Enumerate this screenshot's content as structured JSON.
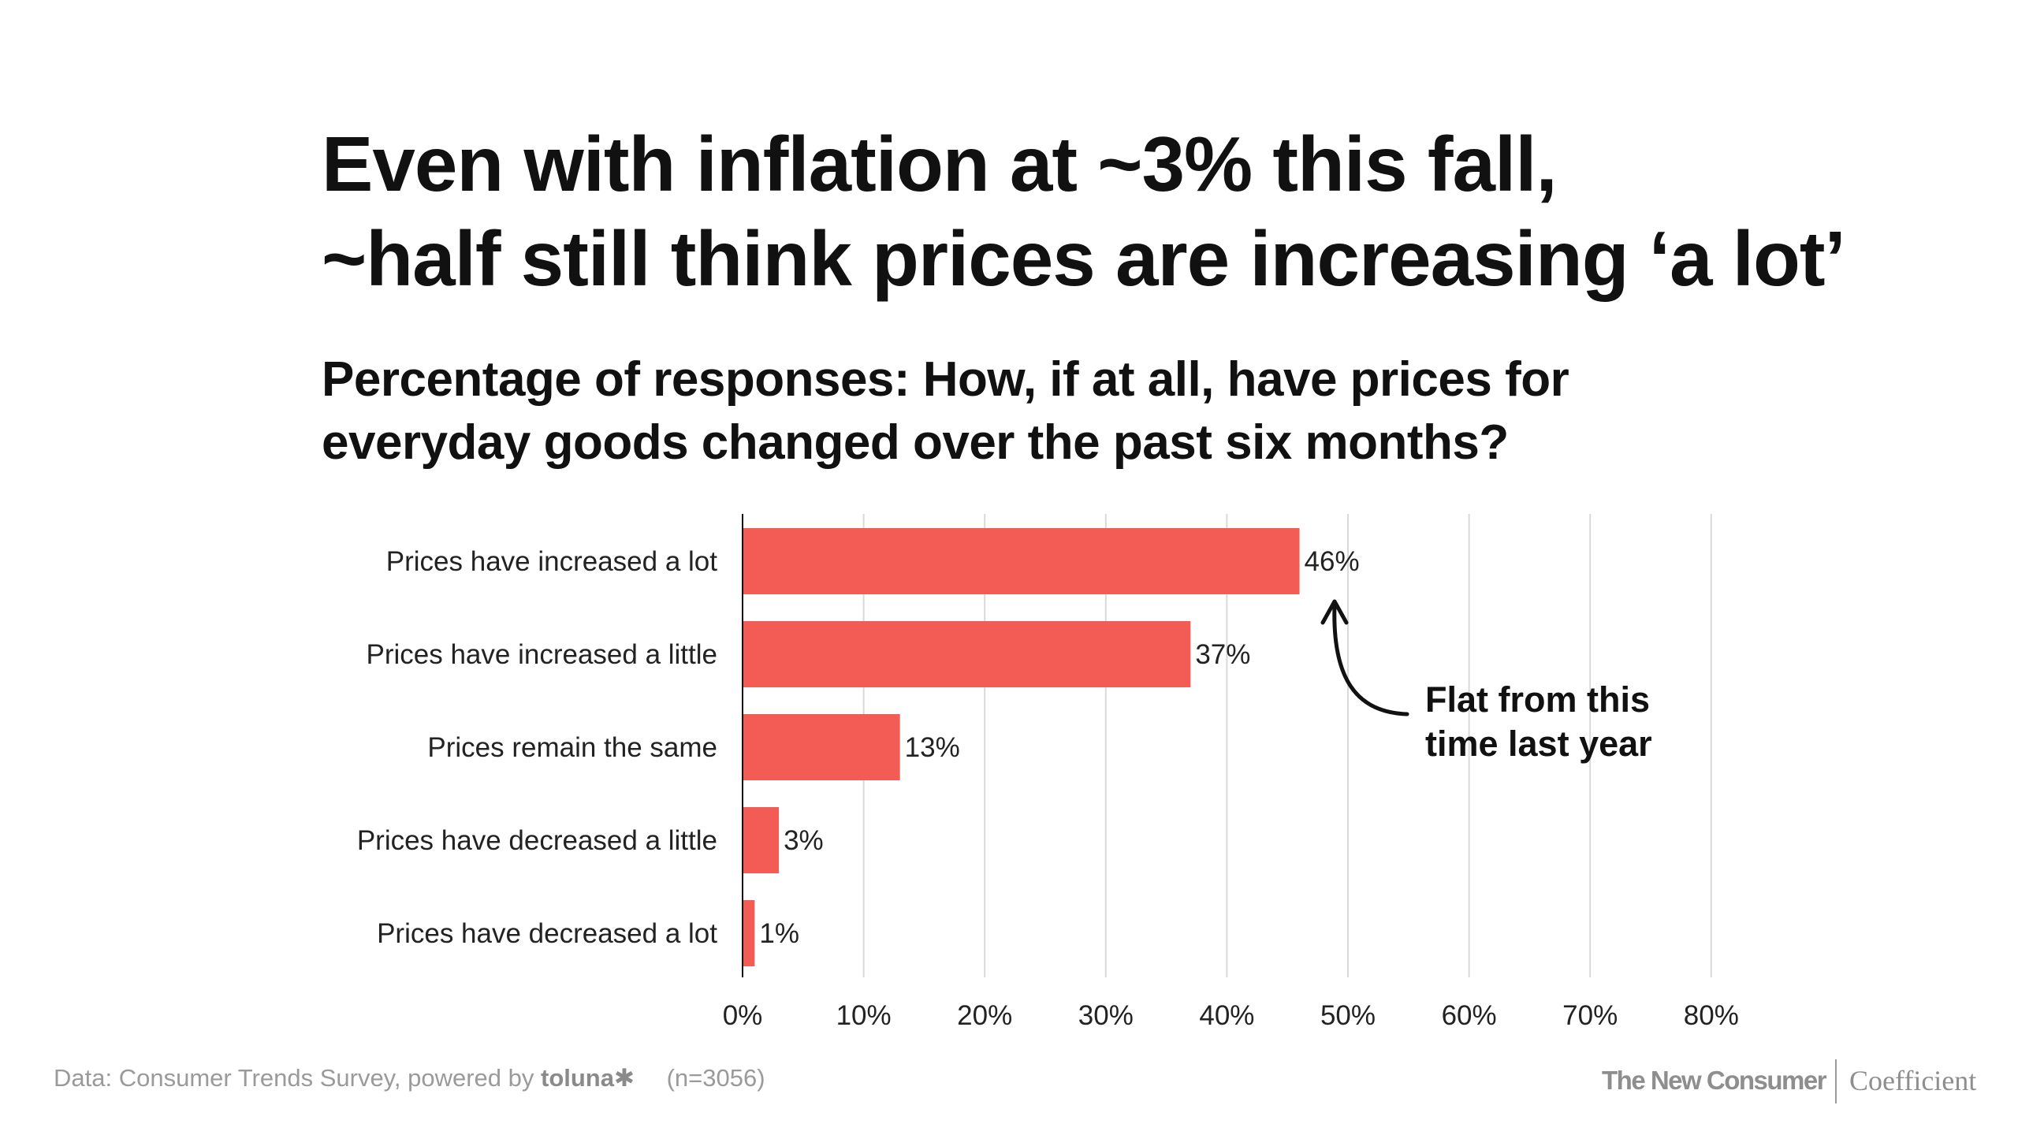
{
  "title_line1": "Even with inflation at ~3% this fall,",
  "title_line2": "~half still think prices are increasing ‘a lot’",
  "subtitle_line1": "Percentage of responses: How, if at all, have prices for",
  "subtitle_line2": "everyday goods changed over the past six months?",
  "annotation_line1": "Flat from this",
  "annotation_line2": "time last year",
  "footer": {
    "source_prefix": "Data: Consumer Trends Survey, powered by",
    "source_brand": "toluna",
    "sample": "(n=3056)",
    "brand_primary": "The New Consumer",
    "brand_secondary": "Coefficient"
  },
  "colors": {
    "bar": "#f25c54",
    "grid": "#d9d9d9",
    "text": "#111111",
    "footer": "#9a9a9a"
  },
  "chart_data": {
    "type": "bar",
    "orientation": "horizontal",
    "categories": [
      "Prices have increased a lot",
      "Prices have increased a little",
      "Prices remain the same",
      "Prices have decreased a little",
      "Prices have decreased a lot"
    ],
    "values": [
      46,
      37,
      13,
      3,
      1
    ],
    "data_labels": [
      "46%",
      "37%",
      "13%",
      "3%",
      "1%"
    ],
    "xlim": [
      0,
      80
    ],
    "xticks": [
      0,
      10,
      20,
      30,
      40,
      50,
      60,
      70,
      80
    ],
    "xtick_labels": [
      "0%",
      "10%",
      "20%",
      "30%",
      "40%",
      "50%",
      "60%",
      "70%",
      "80%"
    ],
    "grid": true,
    "annotation": {
      "text": "Flat from this time last year",
      "target_category": "Prices have increased a lot"
    }
  }
}
